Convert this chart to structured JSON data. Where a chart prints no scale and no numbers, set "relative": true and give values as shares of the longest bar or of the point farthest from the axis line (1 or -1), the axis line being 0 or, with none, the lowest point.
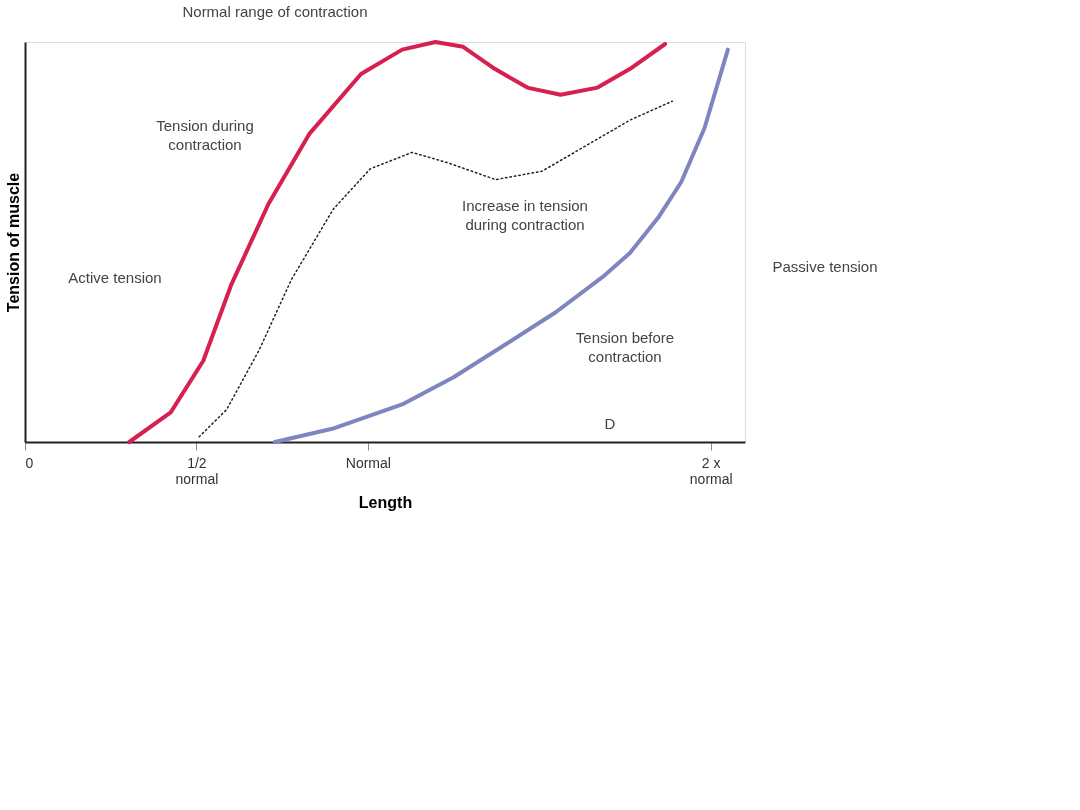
{
  "chart_data": {
    "type": "line",
    "relative": true,
    "xlabel": "Length",
    "ylabel": "Tension of muscle",
    "xlim": [
      0,
      2.1
    ],
    "xticks": [
      0,
      {
        "value": 0.5,
        "label": "1/2 normal"
      },
      {
        "value": 1,
        "label": "Normal"
      },
      {
        "value": 2,
        "label": "2 x normal"
      }
    ],
    "grid": false,
    "series": [
      {
        "color": "#d6204f",
        "line_style": "solid",
        "x": [
          0.304,
          0.425,
          0.52,
          0.601,
          0.71,
          0.83,
          0.98,
          1.1,
          1.197,
          1.278,
          1.37,
          1.465,
          1.562,
          1.67,
          1.765,
          1.867
        ],
        "values": [
          0,
          0.074,
          0.203,
          0.392,
          0.595,
          0.771,
          0.92,
          0.981,
          1.0,
          0.988,
          0.933,
          0.886,
          0.868,
          0.886,
          0.933,
          0.995
        ]
      },
      {
        "color": "#222222",
        "line_style": "dotted",
        "x": [
          0.508,
          0.588,
          0.683,
          0.777,
          0.899,
          1.007,
          1.129,
          1.237,
          1.373,
          1.508,
          1.643,
          1.765,
          1.888
        ],
        "values": [
          0.013,
          0.081,
          0.23,
          0.406,
          0.582,
          0.683,
          0.724,
          0.697,
          0.656,
          0.677,
          0.744,
          0.805,
          0.852
        ]
      },
      {
        "color": "#7f86bf",
        "line_style": "solid",
        "x": [
          0.729,
          0.896,
          1.1,
          1.25,
          1.4,
          1.549,
          1.684,
          1.765,
          1.847,
          1.914,
          1.982,
          2.05
        ],
        "values": [
          0,
          0.033,
          0.094,
          0.162,
          0.243,
          0.325,
          0.412,
          0.473,
          0.561,
          0.65,
          0.785,
          0.981
        ]
      }
    ],
    "annotations": [
      "Normal range of contraction",
      "Tension during contraction",
      "Increase in tension during contraction",
      "Active tension",
      "Passive tension",
      "Tension before contraction",
      "D"
    ]
  }
}
